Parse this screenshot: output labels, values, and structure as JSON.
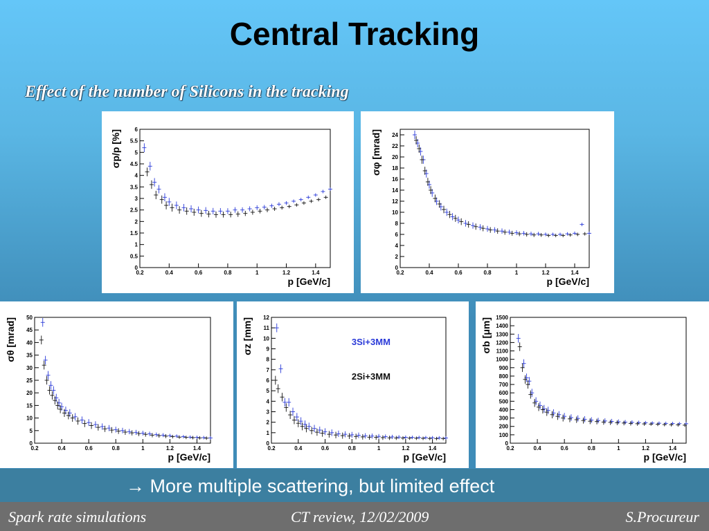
{
  "title": "Central Tracking",
  "subtitle": "Effect of the number of Silicons in the tracking",
  "conclusion": "→ More multiple scattering, but limited effect",
  "footer": {
    "left": "Spark rate simulations",
    "center": "CT review, 12/02/2009",
    "right": "S.Procureur"
  },
  "colors": {
    "series_3si": "#2a3ad8",
    "series_2si": "#111111"
  },
  "chart_data": [
    {
      "type": "scatter",
      "ylabel": "σp/p [%]",
      "xlabel": "p [GeV/c]",
      "xlim": [
        0.2,
        1.5
      ],
      "ylim": [
        0,
        6
      ],
      "xticks": [
        0.2,
        0.4,
        0.6,
        0.8,
        1,
        1.2,
        1.4
      ],
      "yticks": [
        0,
        0.5,
        1,
        1.5,
        2,
        2.5,
        3,
        3.5,
        4,
        4.5,
        5,
        5.5,
        6
      ],
      "series": [
        {
          "x": [
            0.23,
            0.27,
            0.3,
            0.33,
            0.37,
            0.4,
            0.45,
            0.5,
            0.55,
            0.6,
            0.65,
            0.7,
            0.75,
            0.8,
            0.85,
            0.9,
            0.95,
            1.0,
            1.05,
            1.1,
            1.15,
            1.2,
            1.25,
            1.3,
            1.35,
            1.4,
            1.45,
            1.5
          ],
          "y": [
            5.2,
            4.4,
            3.7,
            3.4,
            3.05,
            2.85,
            2.7,
            2.6,
            2.55,
            2.5,
            2.48,
            2.45,
            2.45,
            2.45,
            2.5,
            2.5,
            2.55,
            2.6,
            2.62,
            2.68,
            2.75,
            2.8,
            2.88,
            2.95,
            3.05,
            3.15,
            3.3,
            3.4
          ]
        },
        {
          "x": [
            0.25,
            0.28,
            0.31,
            0.35,
            0.38,
            0.42,
            0.47,
            0.52,
            0.57,
            0.62,
            0.67,
            0.72,
            0.77,
            0.82,
            0.87,
            0.92,
            0.97,
            1.02,
            1.07,
            1.12,
            1.17,
            1.22,
            1.27,
            1.32,
            1.37,
            1.42,
            1.47
          ],
          "y": [
            4.15,
            3.6,
            3.15,
            2.95,
            2.7,
            2.6,
            2.5,
            2.45,
            2.4,
            2.35,
            2.32,
            2.3,
            2.3,
            2.3,
            2.32,
            2.35,
            2.4,
            2.45,
            2.5,
            2.55,
            2.6,
            2.65,
            2.72,
            2.8,
            2.88,
            2.95,
            3.05
          ]
        }
      ]
    },
    {
      "type": "scatter",
      "ylabel": "σφ [mrad]",
      "xlabel": "p [GeV/c]",
      "xlim": [
        0.2,
        1.5
      ],
      "ylim": [
        0,
        25
      ],
      "xticks": [
        0.2,
        0.4,
        0.6,
        0.8,
        1,
        1.2,
        1.4
      ],
      "yticks": [
        0,
        2,
        4,
        6,
        8,
        10,
        12,
        14,
        16,
        18,
        20,
        22,
        24
      ],
      "series": [
        {
          "x": [
            0.3,
            0.32,
            0.34,
            0.36,
            0.38,
            0.4,
            0.42,
            0.45,
            0.48,
            0.52,
            0.56,
            0.6,
            0.65,
            0.7,
            0.75,
            0.8,
            0.85,
            0.9,
            0.95,
            1.0,
            1.05,
            1.1,
            1.15,
            1.2,
            1.25,
            1.3,
            1.35,
            1.4,
            1.45,
            1.5
          ],
          "y": [
            24,
            22.5,
            21,
            19.5,
            17,
            15,
            13.5,
            12,
            11,
            10,
            9.2,
            8.6,
            8.0,
            7.6,
            7.3,
            7.0,
            6.8,
            6.6,
            6.4,
            6.3,
            6.2,
            6.1,
            6.1,
            6.0,
            6.0,
            6.0,
            6.1,
            6.2,
            7.8,
            6.2
          ]
        },
        {
          "x": [
            0.31,
            0.33,
            0.35,
            0.37,
            0.39,
            0.41,
            0.44,
            0.47,
            0.5,
            0.54,
            0.58,
            0.62,
            0.67,
            0.72,
            0.77,
            0.82,
            0.87,
            0.92,
            0.97,
            1.02,
            1.07,
            1.12,
            1.17,
            1.22,
            1.27,
            1.32,
            1.37,
            1.42,
            1.47
          ],
          "y": [
            23,
            21.5,
            19.5,
            17.5,
            15.5,
            14,
            12.5,
            11.5,
            10.5,
            9.6,
            8.9,
            8.3,
            7.8,
            7.4,
            7.1,
            6.8,
            6.6,
            6.4,
            6.2,
            6.1,
            6.0,
            5.9,
            5.9,
            5.8,
            5.8,
            5.8,
            5.9,
            6.0,
            6.1
          ]
        }
      ]
    },
    {
      "type": "scatter",
      "ylabel": "σθ [mrad]",
      "xlabel": "p [GeV/c]",
      "xlim": [
        0.2,
        1.5
      ],
      "ylim": [
        0,
        50
      ],
      "xticks": [
        0.2,
        0.4,
        0.6,
        0.8,
        1,
        1.2,
        1.4
      ],
      "yticks": [
        0,
        5,
        10,
        15,
        20,
        25,
        30,
        35,
        40,
        45,
        50
      ],
      "series": [
        {
          "x": [
            0.26,
            0.28,
            0.3,
            0.32,
            0.34,
            0.36,
            0.38,
            0.4,
            0.43,
            0.46,
            0.5,
            0.55,
            0.6,
            0.65,
            0.7,
            0.75,
            0.8,
            0.85,
            0.9,
            0.95,
            1.0,
            1.05,
            1.1,
            1.15,
            1.2,
            1.25,
            1.3,
            1.35,
            1.4,
            1.45,
            1.5
          ],
          "y": [
            48,
            33,
            27,
            23,
            21,
            18,
            16,
            14.5,
            13,
            12,
            10.5,
            9.2,
            8.2,
            7.4,
            6.6,
            6.0,
            5.4,
            5.0,
            4.6,
            4.3,
            4.0,
            3.7,
            3.4,
            3.2,
            3.0,
            2.8,
            2.6,
            2.4,
            2.3,
            2.2,
            2.1
          ]
        },
        {
          "x": [
            0.25,
            0.27,
            0.29,
            0.31,
            0.33,
            0.35,
            0.37,
            0.39,
            0.42,
            0.45,
            0.48,
            0.52,
            0.57,
            0.62,
            0.67,
            0.72,
            0.77,
            0.82,
            0.87,
            0.92,
            0.97,
            1.02,
            1.07,
            1.12,
            1.17,
            1.22,
            1.27,
            1.32,
            1.37,
            1.42,
            1.47
          ],
          "y": [
            41,
            31,
            25,
            21,
            19,
            17,
            15,
            13.5,
            12,
            11,
            10,
            8.8,
            7.8,
            7.0,
            6.3,
            5.7,
            5.2,
            4.8,
            4.4,
            4.1,
            3.8,
            3.5,
            3.2,
            3.0,
            2.8,
            2.6,
            2.4,
            2.3,
            2.2,
            2.1,
            2.0
          ]
        }
      ]
    },
    {
      "type": "scatter",
      "ylabel": "σz [mm]",
      "xlabel": "p [GeV/c]",
      "xlim": [
        0.2,
        1.5
      ],
      "ylim": [
        0,
        12
      ],
      "xticks": [
        0.2,
        0.4,
        0.6,
        0.8,
        1,
        1.2,
        1.4
      ],
      "yticks": [
        0,
        1,
        2,
        3,
        4,
        5,
        6,
        7,
        8,
        9,
        10,
        11,
        12
      ],
      "legend": [
        {
          "label": "3Si+3MM",
          "color": "#2a3ad8"
        },
        {
          "label": "2Si+3MM",
          "color": "#111111"
        }
      ],
      "series": [
        {
          "name": "3Si+3MM",
          "x": [
            0.24,
            0.27,
            0.3,
            0.33,
            0.36,
            0.39,
            0.42,
            0.45,
            0.48,
            0.52,
            0.56,
            0.6,
            0.65,
            0.7,
            0.75,
            0.8,
            0.85,
            0.9,
            0.95,
            1.0,
            1.05,
            1.1,
            1.15,
            1.2,
            1.25,
            1.3,
            1.35,
            1.4,
            1.45,
            1.5
          ],
          "y": [
            11,
            7.1,
            3.9,
            3.9,
            3.0,
            2.5,
            2.1,
            1.8,
            1.6,
            1.4,
            1.25,
            1.1,
            1.0,
            0.9,
            0.85,
            0.8,
            0.75,
            0.7,
            0.68,
            0.65,
            0.62,
            0.6,
            0.58,
            0.56,
            0.55,
            0.54,
            0.53,
            0.52,
            0.51,
            0.5
          ]
        },
        {
          "name": "2Si+3MM",
          "x": [
            0.23,
            0.25,
            0.28,
            0.31,
            0.34,
            0.37,
            0.4,
            0.43,
            0.46,
            0.5,
            0.54,
            0.58,
            0.63,
            0.68,
            0.73,
            0.78,
            0.83,
            0.88,
            0.93,
            0.98,
            1.03,
            1.08,
            1.13,
            1.18,
            1.23,
            1.28,
            1.33,
            1.38,
            1.43,
            1.48
          ],
          "y": [
            6.0,
            5.2,
            4.4,
            3.4,
            2.7,
            2.2,
            1.9,
            1.6,
            1.4,
            1.2,
            1.05,
            0.95,
            0.85,
            0.78,
            0.72,
            0.68,
            0.64,
            0.6,
            0.57,
            0.55,
            0.53,
            0.51,
            0.5,
            0.49,
            0.48,
            0.47,
            0.46,
            0.45,
            0.44,
            0.44
          ]
        }
      ]
    },
    {
      "type": "scatter",
      "ylabel": "σb [μm]",
      "xlabel": "p [GeV/c]",
      "xlim": [
        0.2,
        1.5
      ],
      "ylim": [
        0,
        1500
      ],
      "xticks": [
        0.2,
        0.4,
        0.6,
        0.8,
        1,
        1.2,
        1.4
      ],
      "yticks": [
        0,
        100,
        200,
        300,
        400,
        500,
        600,
        700,
        800,
        900,
        1000,
        1100,
        1200,
        1300,
        1400,
        1500
      ],
      "series": [
        {
          "x": [
            0.26,
            0.3,
            0.32,
            0.34,
            0.36,
            0.39,
            0.42,
            0.45,
            0.48,
            0.52,
            0.56,
            0.6,
            0.65,
            0.7,
            0.75,
            0.8,
            0.85,
            0.9,
            0.95,
            1.0,
            1.05,
            1.1,
            1.15,
            1.2,
            1.25,
            1.3,
            1.35,
            1.4,
            1.45,
            1.5
          ],
          "y": [
            1250,
            950,
            780,
            740,
            600,
            500,
            450,
            410,
            390,
            360,
            340,
            320,
            305,
            295,
            285,
            275,
            270,
            265,
            260,
            255,
            250,
            248,
            245,
            243,
            240,
            238,
            236,
            235,
            233,
            232
          ]
        },
        {
          "x": [
            0.27,
            0.29,
            0.31,
            0.33,
            0.35,
            0.38,
            0.41,
            0.44,
            0.47,
            0.51,
            0.55,
            0.59,
            0.64,
            0.69,
            0.74,
            0.79,
            0.84,
            0.89,
            0.94,
            0.99,
            1.04,
            1.09,
            1.14,
            1.19,
            1.24,
            1.29,
            1.34,
            1.39,
            1.44,
            1.49
          ],
          "y": [
            1150,
            900,
            760,
            700,
            580,
            480,
            430,
            400,
            370,
            340,
            320,
            300,
            290,
            280,
            270,
            262,
            258,
            252,
            248,
            244,
            240,
            236,
            232,
            230,
            228,
            225,
            222,
            220,
            218,
            215
          ]
        }
      ]
    }
  ]
}
